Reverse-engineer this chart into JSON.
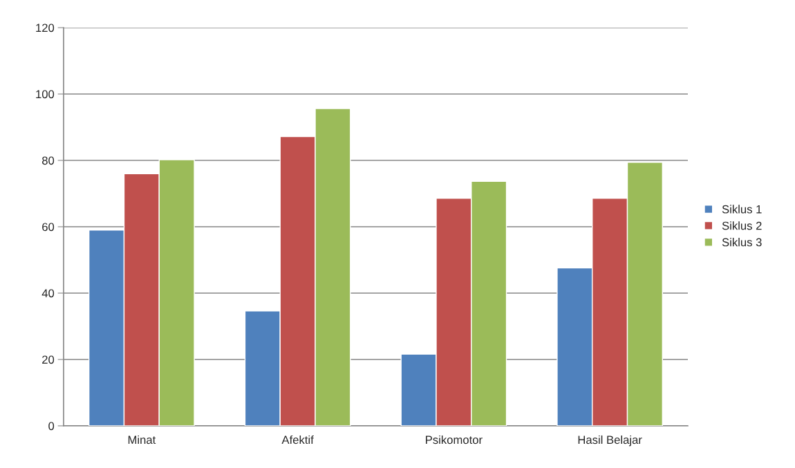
{
  "chart_data": {
    "type": "bar",
    "categories": [
      "Minat",
      "Afektif",
      "Psikomotor",
      "Hasil Belajar"
    ],
    "series": [
      {
        "name": "Siklus 1",
        "color": "#4f81bd",
        "values": [
          59.0,
          34.6,
          21.6,
          47.6
        ]
      },
      {
        "name": "Siklus 2",
        "color": "#c0504d",
        "values": [
          76.0,
          87.2,
          68.6,
          68.6
        ]
      },
      {
        "name": "Siklus 3",
        "color": "#9bbb59",
        "values": [
          80.2,
          95.6,
          73.7,
          79.4
        ]
      }
    ],
    "ylim": [
      0,
      120
    ],
    "yticks": [
      0,
      20,
      40,
      60,
      80,
      100,
      120
    ],
    "grid": "y",
    "legend": "right"
  }
}
